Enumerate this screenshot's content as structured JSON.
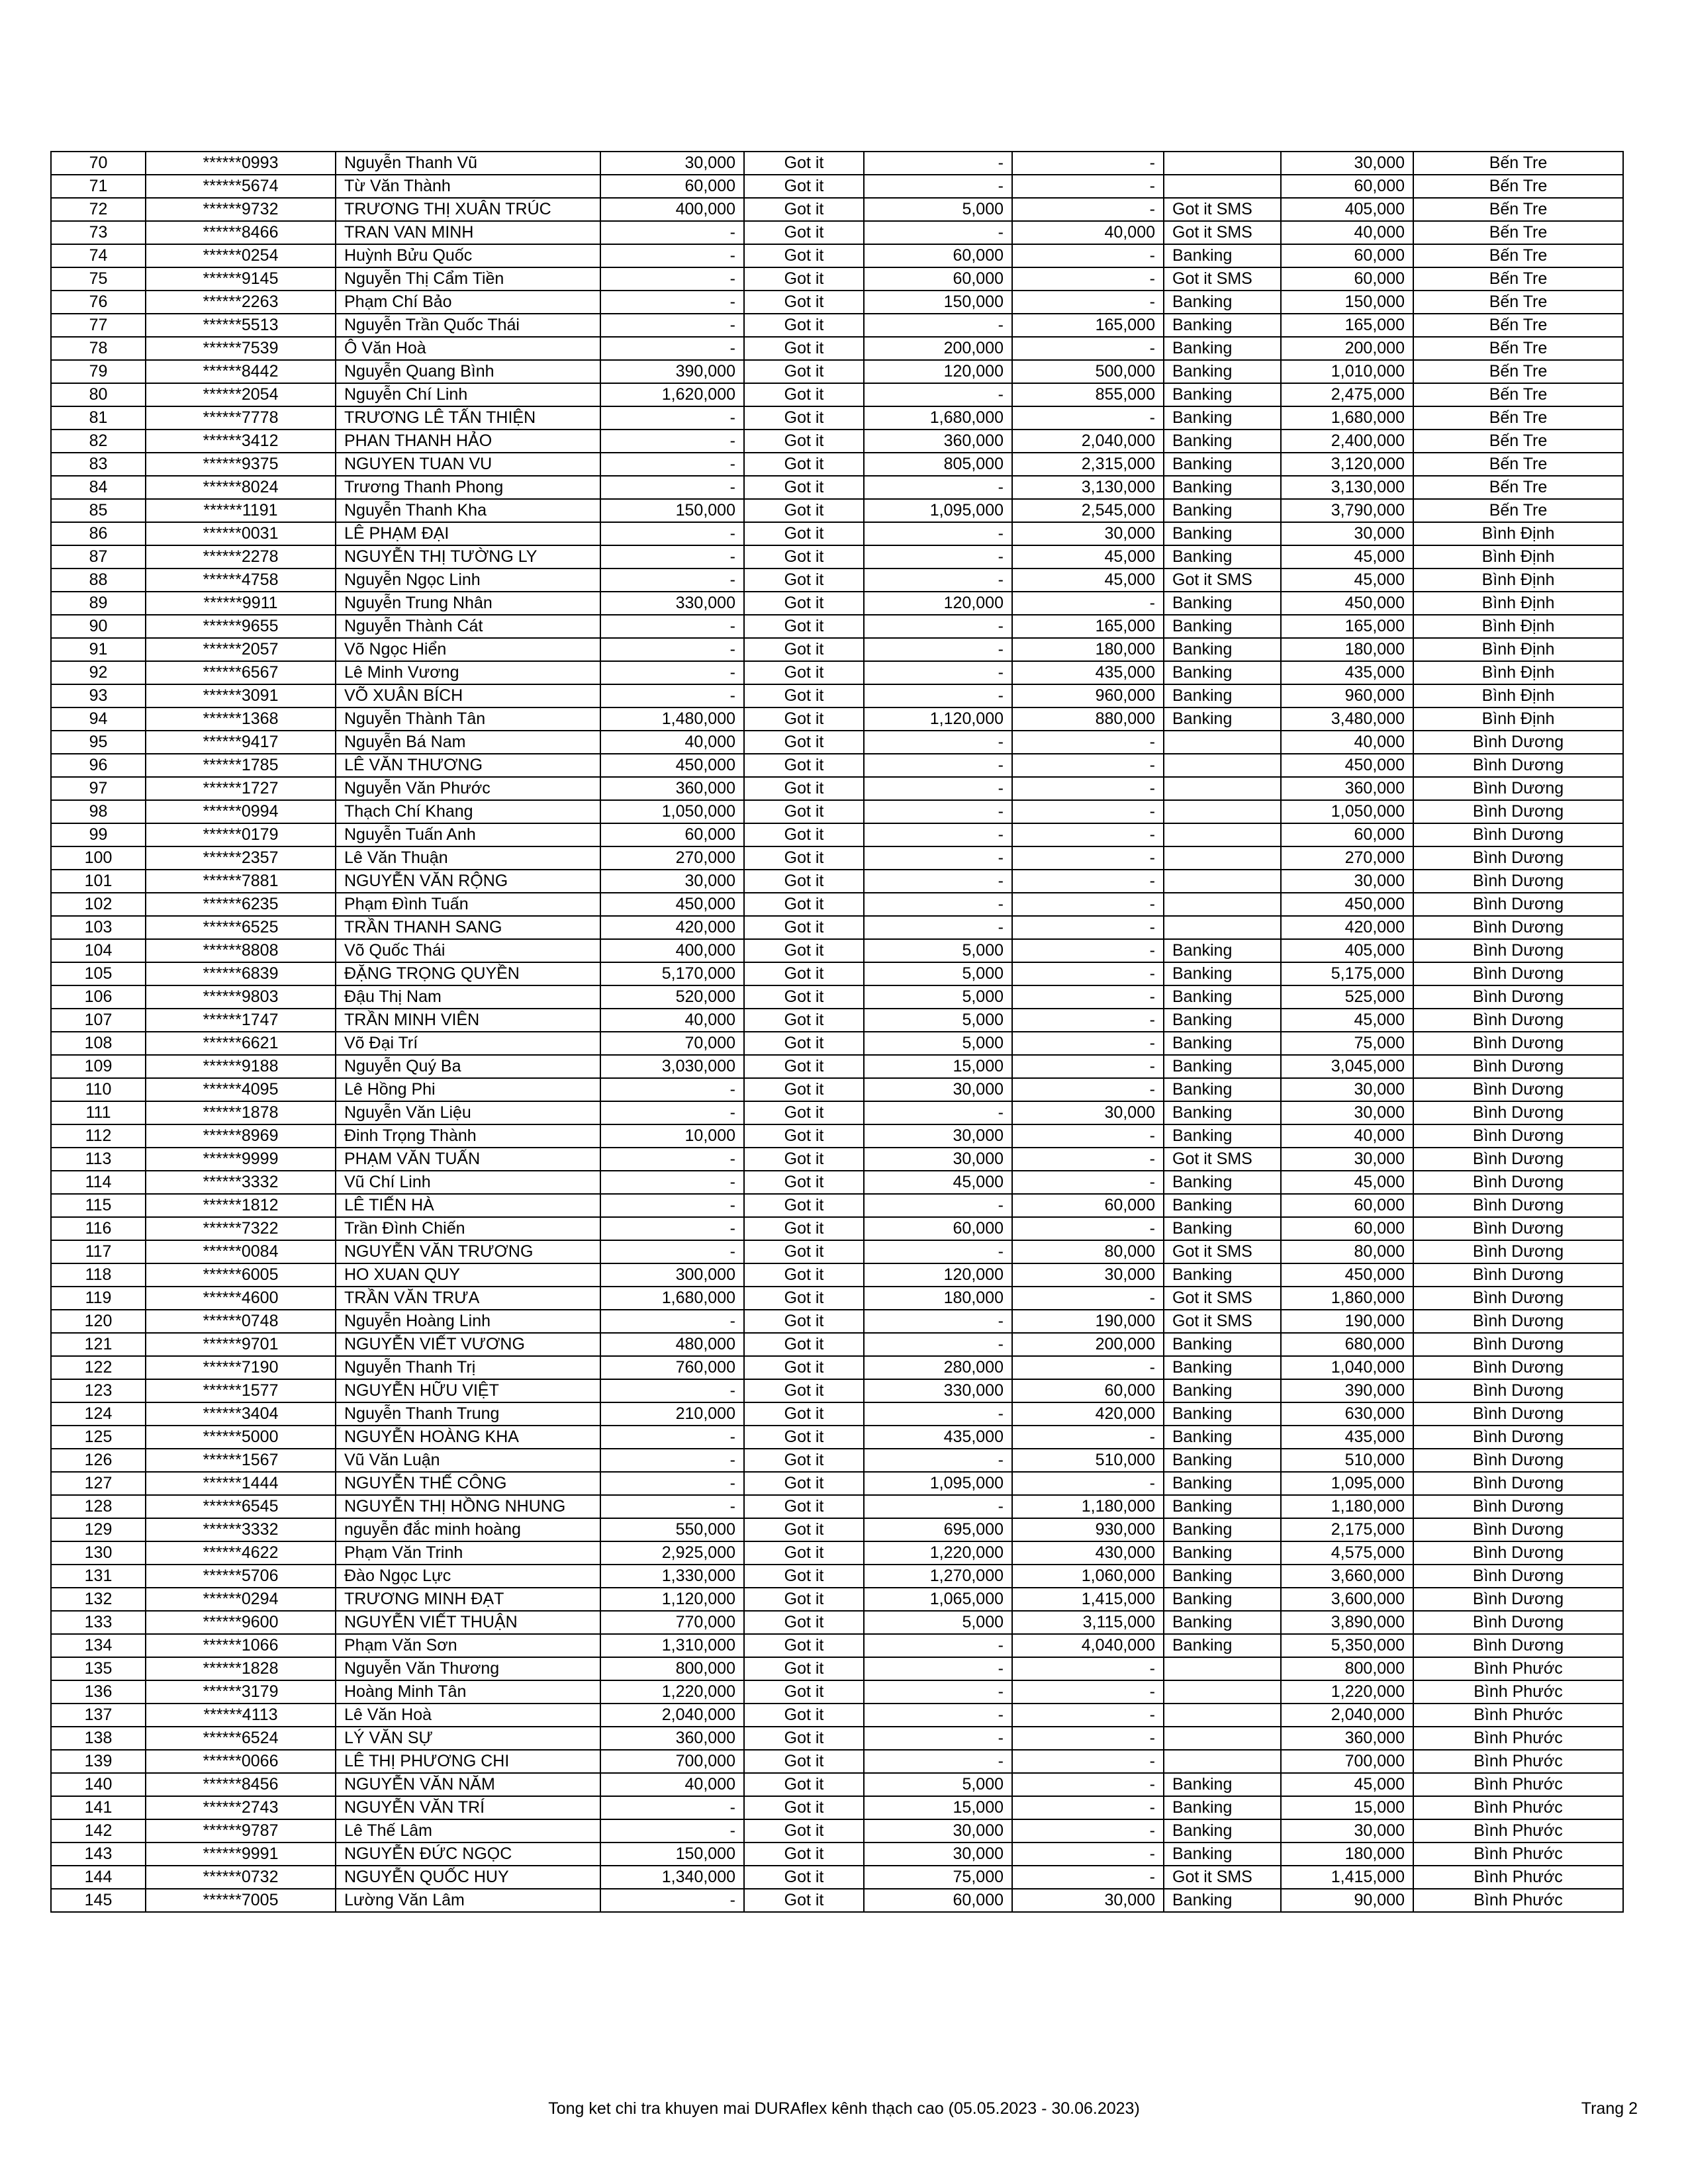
{
  "table": {
    "rows": [
      [
        "70",
        "******0993",
        "Nguyễn Thanh Vũ",
        "30,000",
        "Got it",
        "-",
        "-",
        "",
        "30,000",
        "Bến Tre"
      ],
      [
        "71",
        "******5674",
        "Từ Văn Thành",
        "60,000",
        "Got it",
        "-",
        "-",
        "",
        "60,000",
        "Bến Tre"
      ],
      [
        "72",
        "******9732",
        "TRƯƠNG THỊ XUÂN TRÚC",
        "400,000",
        "Got it",
        "5,000",
        "-",
        "Got it SMS",
        "405,000",
        "Bến Tre"
      ],
      [
        "73",
        "******8466",
        "TRAN VAN MINH",
        "-",
        "Got it",
        "-",
        "40,000",
        "Got it SMS",
        "40,000",
        "Bến Tre"
      ],
      [
        "74",
        "******0254",
        "Huỳnh Bửu Quốc",
        "-",
        "Got it",
        "60,000",
        "-",
        "Banking",
        "60,000",
        "Bến Tre"
      ],
      [
        "75",
        "******9145",
        "Nguyễn Thị Cẩm Tiền",
        "-",
        "Got it",
        "60,000",
        "-",
        "Got it SMS",
        "60,000",
        "Bến Tre"
      ],
      [
        "76",
        "******2263",
        "Phạm  Chí Bảo",
        "-",
        "Got it",
        "150,000",
        "-",
        "Banking",
        "150,000",
        "Bến Tre"
      ],
      [
        "77",
        "******5513",
        "Nguyễn Trần Quốc Thái",
        "-",
        "Got it",
        "-",
        "165,000",
        "Banking",
        "165,000",
        "Bến Tre"
      ],
      [
        "78",
        "******7539",
        "Ô Văn Hoà",
        "-",
        "Got it",
        "200,000",
        "-",
        "Banking",
        "200,000",
        "Bến Tre"
      ],
      [
        "79",
        "******8442",
        "Nguyễn Quang Bình",
        "390,000",
        "Got it",
        "120,000",
        "500,000",
        "Banking",
        "1,010,000",
        "Bến Tre"
      ],
      [
        "80",
        "******2054",
        "Nguyễn Chí Linh",
        "1,620,000",
        "Got it",
        "-",
        "855,000",
        "Banking",
        "2,475,000",
        "Bến Tre"
      ],
      [
        "81",
        "******7778",
        "TRƯƠNG LÊ TẤN THIỆN",
        "-",
        "Got it",
        "1,680,000",
        "-",
        "Banking",
        "1,680,000",
        "Bến Tre"
      ],
      [
        "82",
        "******3412",
        "PHAN THANH HẢO",
        "-",
        "Got it",
        "360,000",
        "2,040,000",
        "Banking",
        "2,400,000",
        "Bến Tre"
      ],
      [
        "83",
        "******9375",
        "NGUYEN TUAN VU",
        "-",
        "Got it",
        "805,000",
        "2,315,000",
        "Banking",
        "3,120,000",
        "Bến Tre"
      ],
      [
        "84",
        "******8024",
        "Trương Thanh Phong",
        "-",
        "Got it",
        "-",
        "3,130,000",
        "Banking",
        "3,130,000",
        "Bến Tre"
      ],
      [
        "85",
        "******1191",
        "Nguyễn Thanh Kha",
        "150,000",
        "Got it",
        "1,095,000",
        "2,545,000",
        "Banking",
        "3,790,000",
        "Bến Tre"
      ],
      [
        "86",
        "******0031",
        "LÊ PHẠM ĐẠI",
        "-",
        "Got it",
        "-",
        "30,000",
        "Banking",
        "30,000",
        "Bình Định"
      ],
      [
        "87",
        "******2278",
        "NGUYỄN THỊ TƯỜNG LY",
        "-",
        "Got it",
        "-",
        "45,000",
        "Banking",
        "45,000",
        "Bình Định"
      ],
      [
        "88",
        "******4758",
        "Nguyễn Ngọc Linh",
        "-",
        "Got it",
        "-",
        "45,000",
        "Got it SMS",
        "45,000",
        "Bình Định"
      ],
      [
        "89",
        "******9911",
        "Nguyễn Trung Nhân",
        "330,000",
        "Got it",
        "120,000",
        "-",
        "Banking",
        "450,000",
        "Bình Định"
      ],
      [
        "90",
        "******9655",
        "Nguyễn Thành Cát",
        "-",
        "Got it",
        "-",
        "165,000",
        "Banking",
        "165,000",
        "Bình Định"
      ],
      [
        "91",
        "******2057",
        "Võ Ngọc Hiển",
        "-",
        "Got it",
        "-",
        "180,000",
        "Banking",
        "180,000",
        "Bình Định"
      ],
      [
        "92",
        "******6567",
        "Lê Minh Vương",
        "-",
        "Got it",
        "-",
        "435,000",
        "Banking",
        "435,000",
        "Bình Định"
      ],
      [
        "93",
        "******3091",
        "VÕ XUÂN BÍCH",
        "-",
        "Got it",
        "-",
        "960,000",
        "Banking",
        "960,000",
        "Bình Định"
      ],
      [
        "94",
        "******1368",
        "Nguyễn Thành Tân",
        "1,480,000",
        "Got it",
        "1,120,000",
        "880,000",
        "Banking",
        "3,480,000",
        "Bình Định"
      ],
      [
        "95",
        "******9417",
        "Nguyễn Bá Nam",
        "40,000",
        "Got it",
        "-",
        "-",
        "",
        "40,000",
        "Bình Dương"
      ],
      [
        "96",
        "******1785",
        "LÊ VĂN THƯƠNG",
        "450,000",
        "Got it",
        "-",
        "-",
        "",
        "450,000",
        "Bình Dương"
      ],
      [
        "97",
        "******1727",
        "Nguyễn Văn Phước",
        "360,000",
        "Got it",
        "-",
        "-",
        "",
        "360,000",
        "Bình Dương"
      ],
      [
        "98",
        "******0994",
        "Thạch Chí Khang",
        "1,050,000",
        "Got it",
        "-",
        "-",
        "",
        "1,050,000",
        "Bình Dương"
      ],
      [
        "99",
        "******0179",
        "Nguyễn Tuấn Anh",
        "60,000",
        "Got it",
        "-",
        "-",
        "",
        "60,000",
        "Bình Dương"
      ],
      [
        "100",
        "******2357",
        "Lê  Văn Thuận",
        "270,000",
        "Got it",
        "-",
        "-",
        "",
        "270,000",
        "Bình Dương"
      ],
      [
        "101",
        "******7881",
        "NGUYỄN VĂN RỘNG",
        "30,000",
        "Got it",
        "-",
        "-",
        "",
        "30,000",
        "Bình Dương"
      ],
      [
        "102",
        "******6235",
        "Phạm Đình Tuấn",
        "450,000",
        "Got it",
        "-",
        "-",
        "",
        "450,000",
        "Bình Dương"
      ],
      [
        "103",
        "******6525",
        "TRẦN THANH SANG",
        "420,000",
        "Got it",
        "-",
        "-",
        "",
        "420,000",
        "Bình Dương"
      ],
      [
        "104",
        "******8808",
        "Võ Quốc Thái",
        "400,000",
        "Got it",
        "5,000",
        "-",
        "Banking",
        "405,000",
        "Bình Dương"
      ],
      [
        "105",
        "******6839",
        "ĐẶNG TRỌNG QUYỀN",
        "5,170,000",
        "Got it",
        "5,000",
        "-",
        "Banking",
        "5,175,000",
        "Bình Dương"
      ],
      [
        "106",
        "******9803",
        "Đậu Thị Nam",
        "520,000",
        "Got it",
        "5,000",
        "-",
        "Banking",
        "525,000",
        "Bình Dương"
      ],
      [
        "107",
        "******1747",
        "TRẦN MINH VIÊN",
        "40,000",
        "Got it",
        "5,000",
        "-",
        "Banking",
        "45,000",
        "Bình Dương"
      ],
      [
        "108",
        "******6621",
        "Võ Đại Trí",
        "70,000",
        "Got it",
        "5,000",
        "-",
        "Banking",
        "75,000",
        "Bình Dương"
      ],
      [
        "109",
        "******9188",
        "Nguyễn Quý Ba",
        "3,030,000",
        "Got it",
        "15,000",
        "-",
        "Banking",
        "3,045,000",
        "Bình Dương"
      ],
      [
        "110",
        "******4095",
        "Lê Hồng Phi",
        "-",
        "Got it",
        "30,000",
        "-",
        "Banking",
        "30,000",
        "Bình Dương"
      ],
      [
        "111",
        "******1878",
        "Nguyễn Văn Liệu",
        "-",
        "Got it",
        "-",
        "30,000",
        "Banking",
        "30,000",
        "Bình Dương"
      ],
      [
        "112",
        "******8969",
        "Đinh Trọng Thành",
        "10,000",
        "Got it",
        "30,000",
        "-",
        "Banking",
        "40,000",
        "Bình Dương"
      ],
      [
        "113",
        "******9999",
        "PHẠM VĂN TUẤN",
        "-",
        "Got it",
        "30,000",
        "-",
        "Got it SMS",
        "30,000",
        "Bình Dương"
      ],
      [
        "114",
        "******3332",
        "Vũ Chí Linh",
        "-",
        "Got it",
        "45,000",
        "-",
        "Banking",
        "45,000",
        "Bình Dương"
      ],
      [
        "115",
        "******1812",
        "LÊ TIẾN HÀ",
        "-",
        "Got it",
        "-",
        "60,000",
        "Banking",
        "60,000",
        "Bình Dương"
      ],
      [
        "116",
        "******7322",
        "Trần  Đình Chiến",
        "-",
        "Got it",
        "60,000",
        "-",
        "Banking",
        "60,000",
        "Bình Dương"
      ],
      [
        "117",
        "******0084",
        "NGUYỄN VĂN TRƯƠNG",
        "-",
        "Got it",
        "-",
        "80,000",
        "Got it SMS",
        "80,000",
        "Bình Dương"
      ],
      [
        "118",
        "******6005",
        "HO XUAN QUY",
        "300,000",
        "Got it",
        "120,000",
        "30,000",
        "Banking",
        "450,000",
        "Bình Dương"
      ],
      [
        "119",
        "******4600",
        "TRẦN VĂN TRƯA",
        "1,680,000",
        "Got it",
        "180,000",
        "-",
        "Got it SMS",
        "1,860,000",
        "Bình Dương"
      ],
      [
        "120",
        "******0748",
        "Nguyễn Hoàng Linh",
        "-",
        "Got it",
        "-",
        "190,000",
        "Got it SMS",
        "190,000",
        "Bình Dương"
      ],
      [
        "121",
        "******9701",
        "NGUYỄN VIẾT VƯƠNG",
        "480,000",
        "Got it",
        "-",
        "200,000",
        "Banking",
        "680,000",
        "Bình Dương"
      ],
      [
        "122",
        "******7190",
        "Nguyễn Thanh Trị",
        "760,000",
        "Got it",
        "280,000",
        "-",
        "Banking",
        "1,040,000",
        "Bình Dương"
      ],
      [
        "123",
        "******1577",
        "NGUYỄN HỮU VIỆT",
        "-",
        "Got it",
        "330,000",
        "60,000",
        "Banking",
        "390,000",
        "Bình Dương"
      ],
      [
        "124",
        "******3404",
        "Nguyễn Thanh Trung",
        "210,000",
        "Got it",
        "-",
        "420,000",
        "Banking",
        "630,000",
        "Bình Dương"
      ],
      [
        "125",
        "******5000",
        "NGUYỄN HOÀNG KHA",
        "-",
        "Got it",
        "435,000",
        "-",
        "Banking",
        "435,000",
        "Bình Dương"
      ],
      [
        "126",
        "******1567",
        "Vũ Văn Luận",
        "-",
        "Got it",
        "-",
        "510,000",
        "Banking",
        "510,000",
        "Bình Dương"
      ],
      [
        "127",
        "******1444",
        "NGUYỄN THẾ CÔNG",
        "-",
        "Got it",
        "1,095,000",
        "-",
        "Banking",
        "1,095,000",
        "Bình Dương"
      ],
      [
        "128",
        "******6545",
        "NGUYỄN THỊ HỒNG NHUNG",
        "-",
        "Got it",
        "-",
        "1,180,000",
        "Banking",
        "1,180,000",
        "Bình Dương"
      ],
      [
        "129",
        "******3332",
        "nguyễn đắc minh hoàng",
        "550,000",
        "Got it",
        "695,000",
        "930,000",
        "Banking",
        "2,175,000",
        "Bình Dương"
      ],
      [
        "130",
        "******4622",
        "Phạm Văn Trinh",
        "2,925,000",
        "Got it",
        "1,220,000",
        "430,000",
        "Banking",
        "4,575,000",
        "Bình Dương"
      ],
      [
        "131",
        "******5706",
        "Đào Ngọc Lực",
        "1,330,000",
        "Got it",
        "1,270,000",
        "1,060,000",
        "Banking",
        "3,660,000",
        "Bình Dương"
      ],
      [
        "132",
        "******0294",
        "TRƯƠNG MINH ĐẠT",
        "1,120,000",
        "Got it",
        "1,065,000",
        "1,415,000",
        "Banking",
        "3,600,000",
        "Bình Dương"
      ],
      [
        "133",
        "******9600",
        "NGUYỄN VIẾT THUẬN",
        "770,000",
        "Got it",
        "5,000",
        "3,115,000",
        "Banking",
        "3,890,000",
        "Bình Dương"
      ],
      [
        "134",
        "******1066",
        "Phạm Văn Sơn",
        "1,310,000",
        "Got it",
        "-",
        "4,040,000",
        "Banking",
        "5,350,000",
        "Bình Dương"
      ],
      [
        "135",
        "******1828",
        "Nguyễn  Văn Thương",
        "800,000",
        "Got it",
        "-",
        "-",
        "",
        "800,000",
        "Bình Phước"
      ],
      [
        "136",
        "******3179",
        "Hoàng Minh Tân",
        "1,220,000",
        "Got it",
        "-",
        "-",
        "",
        "1,220,000",
        "Bình Phước"
      ],
      [
        "137",
        "******4113",
        "Lê Văn Hoà",
        "2,040,000",
        "Got it",
        "-",
        "-",
        "",
        "2,040,000",
        "Bình Phước"
      ],
      [
        "138",
        "******6524",
        "LÝ VĂN SỰ",
        "360,000",
        "Got it",
        "-",
        "-",
        "",
        "360,000",
        "Bình Phước"
      ],
      [
        "139",
        "******0066",
        "LÊ THỊ PHƯƠNG CHI",
        "700,000",
        "Got it",
        "-",
        "-",
        "",
        "700,000",
        "Bình Phước"
      ],
      [
        "140",
        "******8456",
        "NGUYỄN VĂN NĂM",
        "40,000",
        "Got it",
        "5,000",
        "-",
        "Banking",
        "45,000",
        "Bình Phước"
      ],
      [
        "141",
        "******2743",
        "NGUYỄN VĂN TRÍ",
        "-",
        "Got it",
        "15,000",
        "-",
        "Banking",
        "15,000",
        "Bình Phước"
      ],
      [
        "142",
        "******9787",
        "Lê Thế Lâm",
        "-",
        "Got it",
        "30,000",
        "-",
        "Banking",
        "30,000",
        "Bình Phước"
      ],
      [
        "143",
        "******9991",
        "NGUYỄN ĐỨC NGỌC",
        "150,000",
        "Got it",
        "30,000",
        "-",
        "Banking",
        "180,000",
        "Bình Phước"
      ],
      [
        "144",
        "******0732",
        "NGUYỄN QUỐC HUY",
        "1,340,000",
        "Got it",
        "75,000",
        "-",
        "Got it SMS",
        "1,415,000",
        "Bình Phước"
      ],
      [
        "145",
        "******7005",
        "Lường Văn Lâm",
        "-",
        "Got it",
        "60,000",
        "30,000",
        "Banking",
        "90,000",
        "Bình Phước"
      ]
    ]
  },
  "footer": {
    "title": "Tong ket chi tra khuyen mai DURAflex kênh thạch cao (05.05.2023 - 30.06.2023)",
    "page": "Trang 2"
  }
}
